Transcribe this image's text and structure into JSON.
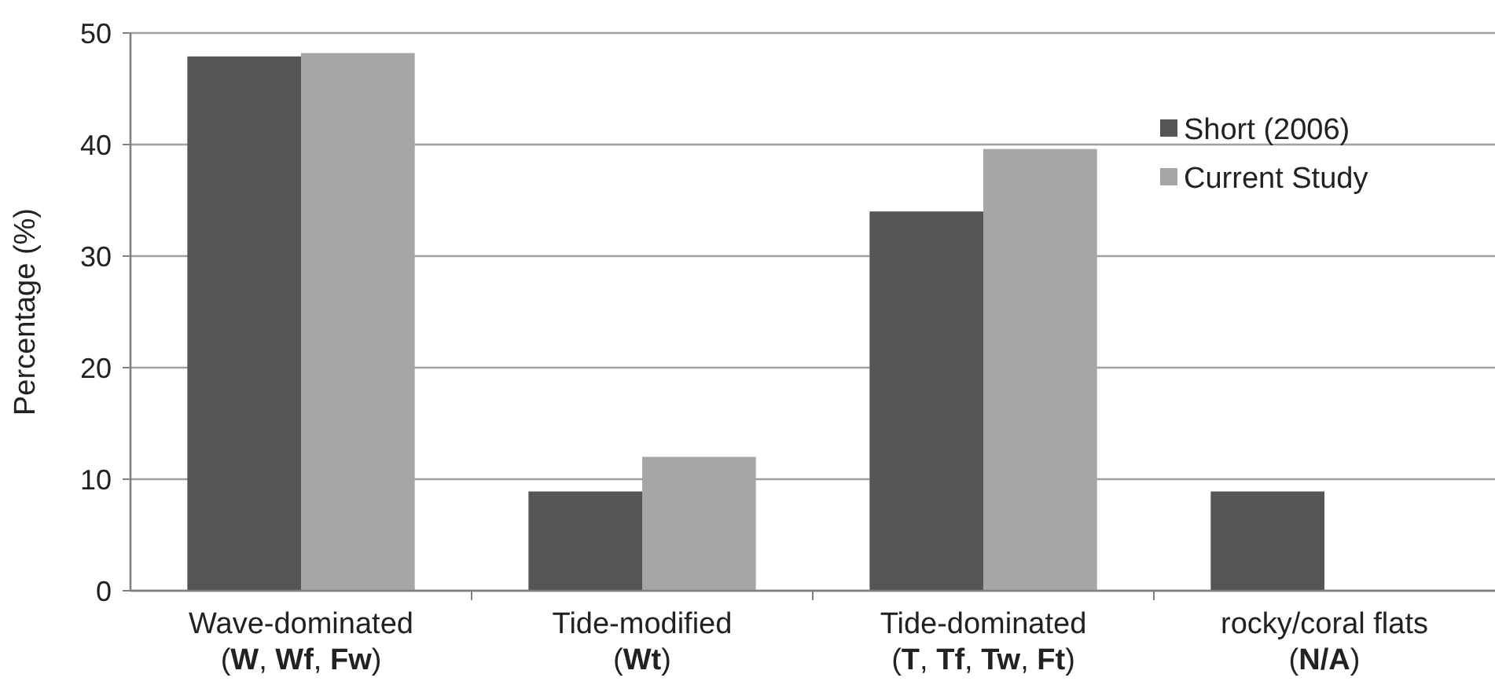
{
  "chart_data": {
    "type": "bar",
    "ylabel": "Percentage (%)",
    "categories": [
      "Wave-dominated\n(W, Wf, Fw)",
      "Tide-modified\n(Wt)",
      "Tide-dominated\n(T, Tf, Tw, Ft)",
      "rocky/coral flats\n(N/A)"
    ],
    "series": [
      {
        "name": "Short (2006)",
        "color": "#555555",
        "values": [
          47.9,
          8.9,
          34,
          8.9
        ]
      },
      {
        "name": "Current Study",
        "color": "#a6a6a6",
        "values": [
          48.2,
          12,
          39.6,
          null
        ]
      }
    ],
    "ylim": [
      0,
      50
    ],
    "yticks": [
      0,
      10,
      20,
      30,
      40,
      50
    ],
    "grid": "y",
    "legend": "right"
  }
}
